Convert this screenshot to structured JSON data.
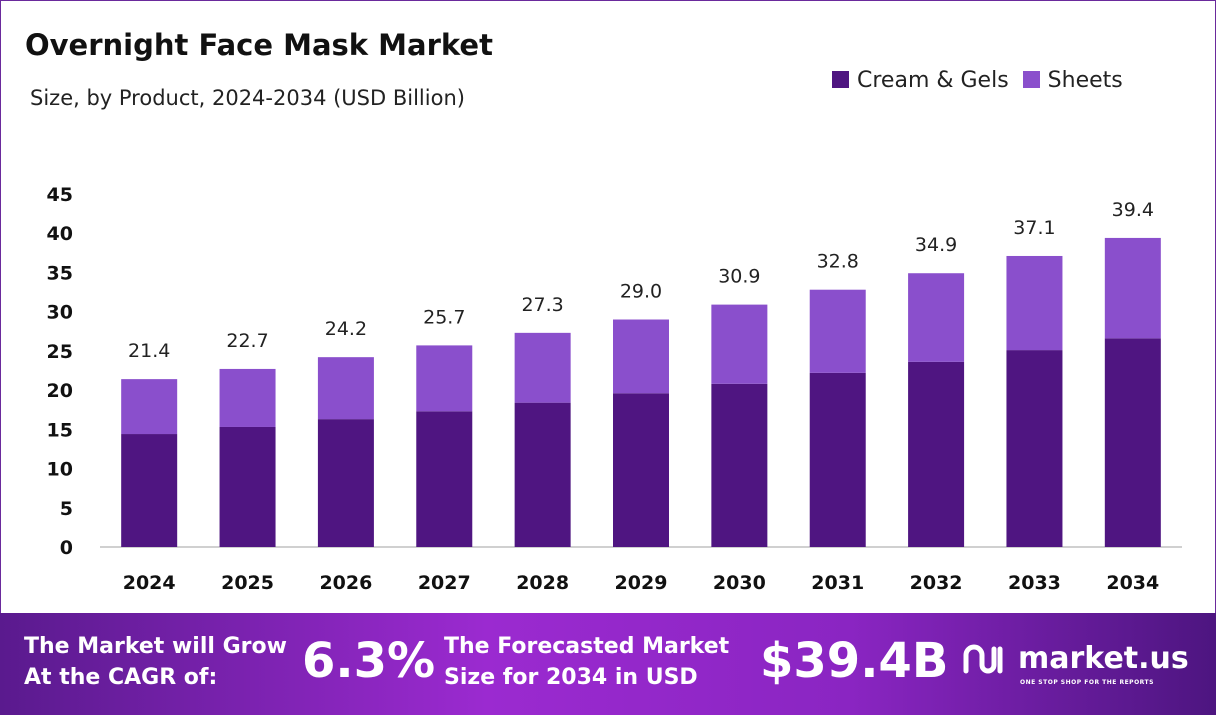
{
  "chart_data": {
    "type": "bar",
    "stacked": true,
    "title": "Overnight Face Mask Market",
    "subtitle": "Size, by Product, 2024-2034 (USD Billion)",
    "categories": [
      "2024",
      "2025",
      "2026",
      "2027",
      "2028",
      "2029",
      "2030",
      "2031",
      "2032",
      "2033",
      "2034"
    ],
    "series": [
      {
        "name": "Cream & Gels",
        "color": "#4f1581",
        "values": [
          14.4,
          15.3,
          16.3,
          17.3,
          18.4,
          19.6,
          20.8,
          22.2,
          23.6,
          25.1,
          26.6
        ]
      },
      {
        "name": "Sheets",
        "color": "#8a4fcc",
        "values": [
          7.0,
          7.4,
          7.9,
          8.4,
          8.9,
          9.4,
          10.1,
          10.6,
          11.3,
          12.0,
          12.8
        ]
      }
    ],
    "totals": [
      "21.4",
      "22.7",
      "24.2",
      "25.7",
      "27.3",
      "29.0",
      "30.9",
      "32.8",
      "34.9",
      "37.1",
      "39.4"
    ],
    "yticks": [
      "0",
      "5",
      "10",
      "15",
      "20",
      "25",
      "30",
      "35",
      "40",
      "45"
    ],
    "ylim": [
      0,
      45
    ],
    "grid": false,
    "legend": "top-right"
  },
  "footer": {
    "cagr_label_1": "The Market will Grow",
    "cagr_label_2": "At the CAGR of:",
    "cagr_value": "6.3%",
    "forecast_label_1": "The Forecasted Market",
    "forecast_label_2": "Size for 2034 in USD",
    "forecast_value": "$39.4B",
    "logo_name": "market.us",
    "logo_tagline": "ONE STOP SHOP FOR THE REPORTS"
  }
}
